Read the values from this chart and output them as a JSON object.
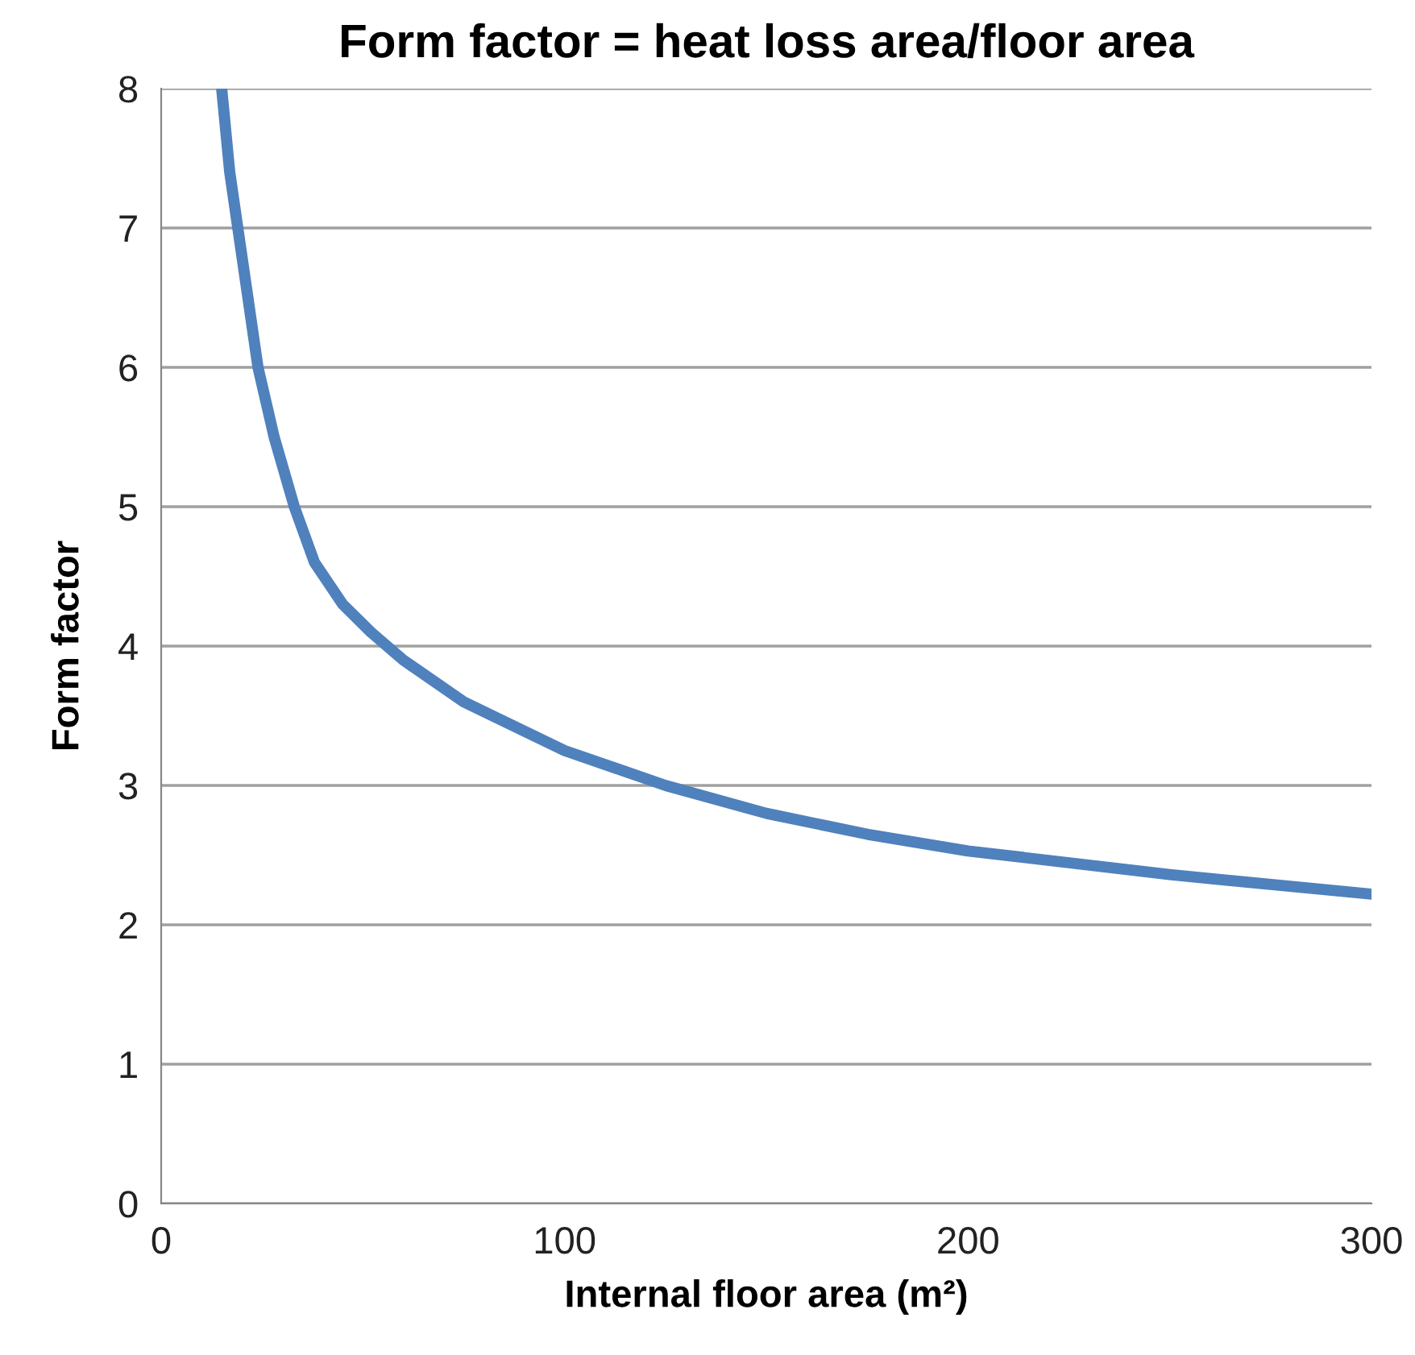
{
  "chart_data": {
    "type": "line",
    "title": "Form factor = heat loss area/floor area",
    "xlabel": "Internal floor area (m²)",
    "ylabel": "Form factor",
    "x": [
      15,
      17,
      19,
      21,
      24,
      28,
      33,
      38,
      45,
      52,
      60,
      75,
      100,
      125,
      150,
      175,
      200,
      250,
      300
    ],
    "series": [
      {
        "color": "#4f81bd",
        "values": [
          8.0,
          7.4,
          7.0,
          6.6,
          6.0,
          5.5,
          5.0,
          4.6,
          4.3,
          4.1,
          3.9,
          3.6,
          3.25,
          3.0,
          2.8,
          2.65,
          2.53,
          2.36,
          2.22
        ]
      }
    ],
    "xlim": [
      0,
      300
    ],
    "xticks": [
      0,
      100,
      200,
      300
    ],
    "ylim": [
      0,
      8
    ],
    "yticks": [
      0,
      1,
      2,
      3,
      4,
      5,
      6,
      7,
      8
    ],
    "grid": "y",
    "marker": "none",
    "line_style": "solid"
  }
}
